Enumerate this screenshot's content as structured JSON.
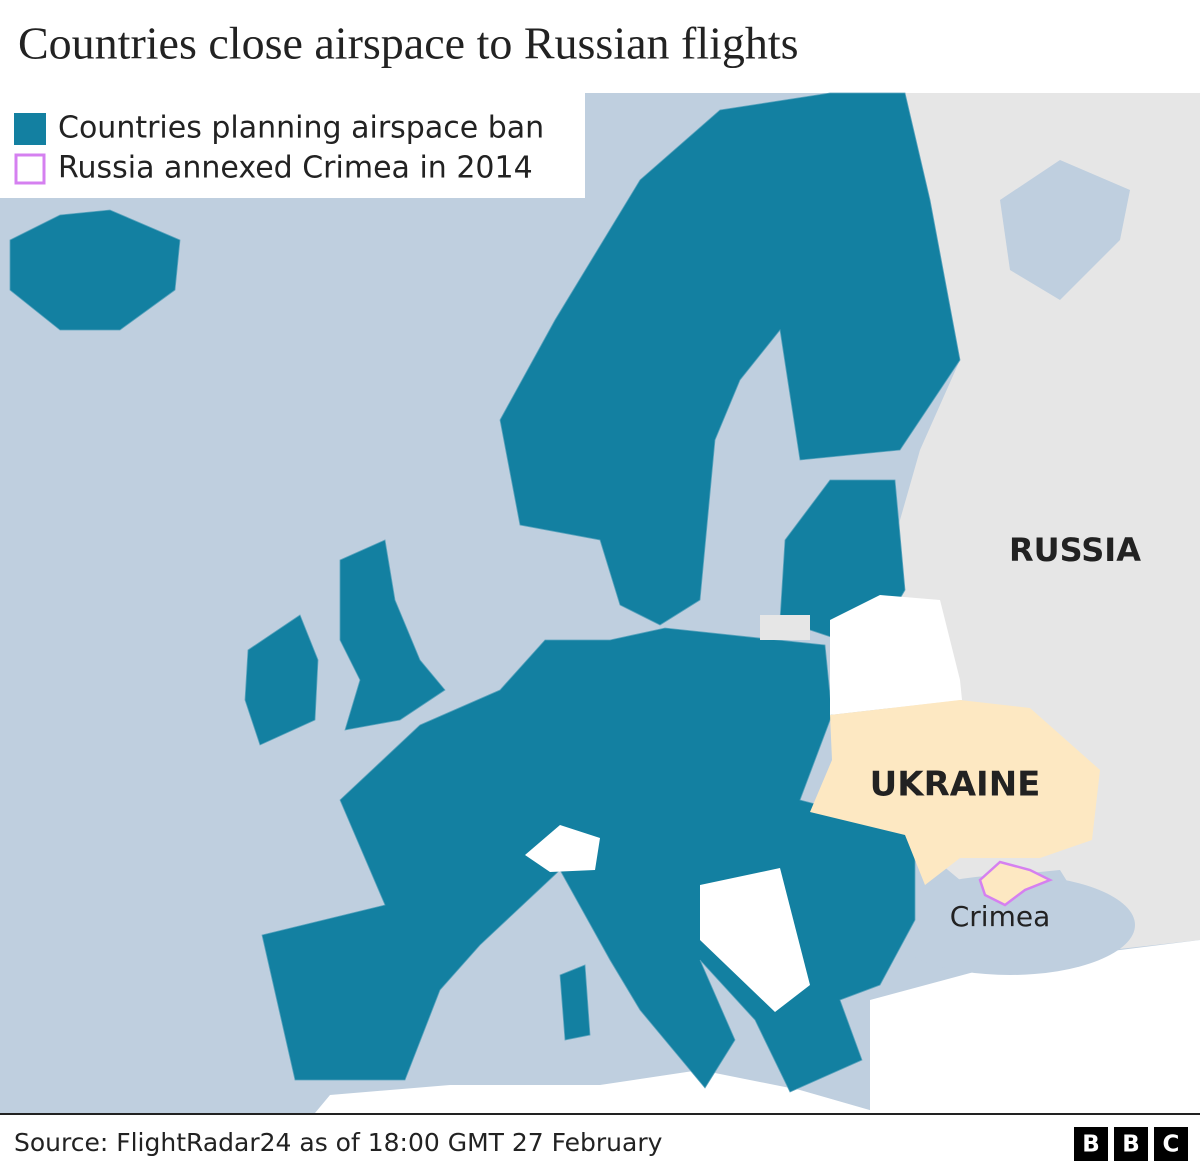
{
  "title": "Countries close airspace to Russian flights",
  "legend": [
    {
      "label": "Countries planning airspace ban",
      "color": "#1380a1"
    },
    {
      "label": "Russia annexed Crimea in 2014",
      "color": "#d580f0"
    }
  ],
  "map_labels": {
    "russia": "RUSSIA",
    "ukraine": "UKRAINE",
    "crimea": "Crimea"
  },
  "footer": {
    "source": "Source: FlightRadar24 as of 18:00 GMT 27 February",
    "logo": [
      "B",
      "B",
      "C"
    ]
  }
}
